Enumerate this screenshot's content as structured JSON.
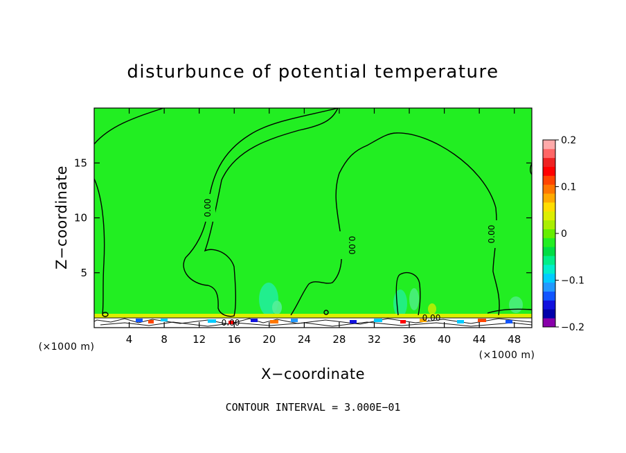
{
  "chart_data": {
    "type": "heatmap",
    "title": "disturbunce of potential temperature",
    "xlabel": "X−coordinate",
    "ylabel": "Z−coordinate",
    "x_unit": "(×1000 m)",
    "xlim": [
      0,
      50
    ],
    "ylim": [
      0,
      20
    ],
    "x_ticks": [
      4,
      8,
      12,
      16,
      20,
      24,
      28,
      32,
      36,
      40,
      44,
      48
    ],
    "y_ticks": [
      5,
      10,
      15
    ],
    "field_value_dominant": 0,
    "contour_labels": [
      "0.00",
      "0.00",
      "0.00",
      "0.00",
      "0.00"
    ],
    "contour_interval_text": "CONTOUR INTERVAL = 3.000E−01",
    "colorbar": {
      "range": [
        -0.2,
        0.2
      ],
      "tick_values": [
        0.2,
        0.1,
        0,
        -0.1,
        -0.2
      ],
      "tick_labels": [
        "0.2",
        "0.1",
        "0",
        "−0.1",
        "−0.2"
      ],
      "colors": [
        "#8800aa",
        "#0000aa",
        "#1111dd",
        "#1155ff",
        "#2299ff",
        "#00ccff",
        "#00eecc",
        "#00ee88",
        "#00dd44",
        "#22ee22",
        "#66ee00",
        "#aaee00",
        "#ddee00",
        "#ffdd00",
        "#ffaa00",
        "#ff7700",
        "#ff4400",
        "#ff0000",
        "#ee2222",
        "#ff6666",
        "#ffaaaa"
      ]
    }
  }
}
